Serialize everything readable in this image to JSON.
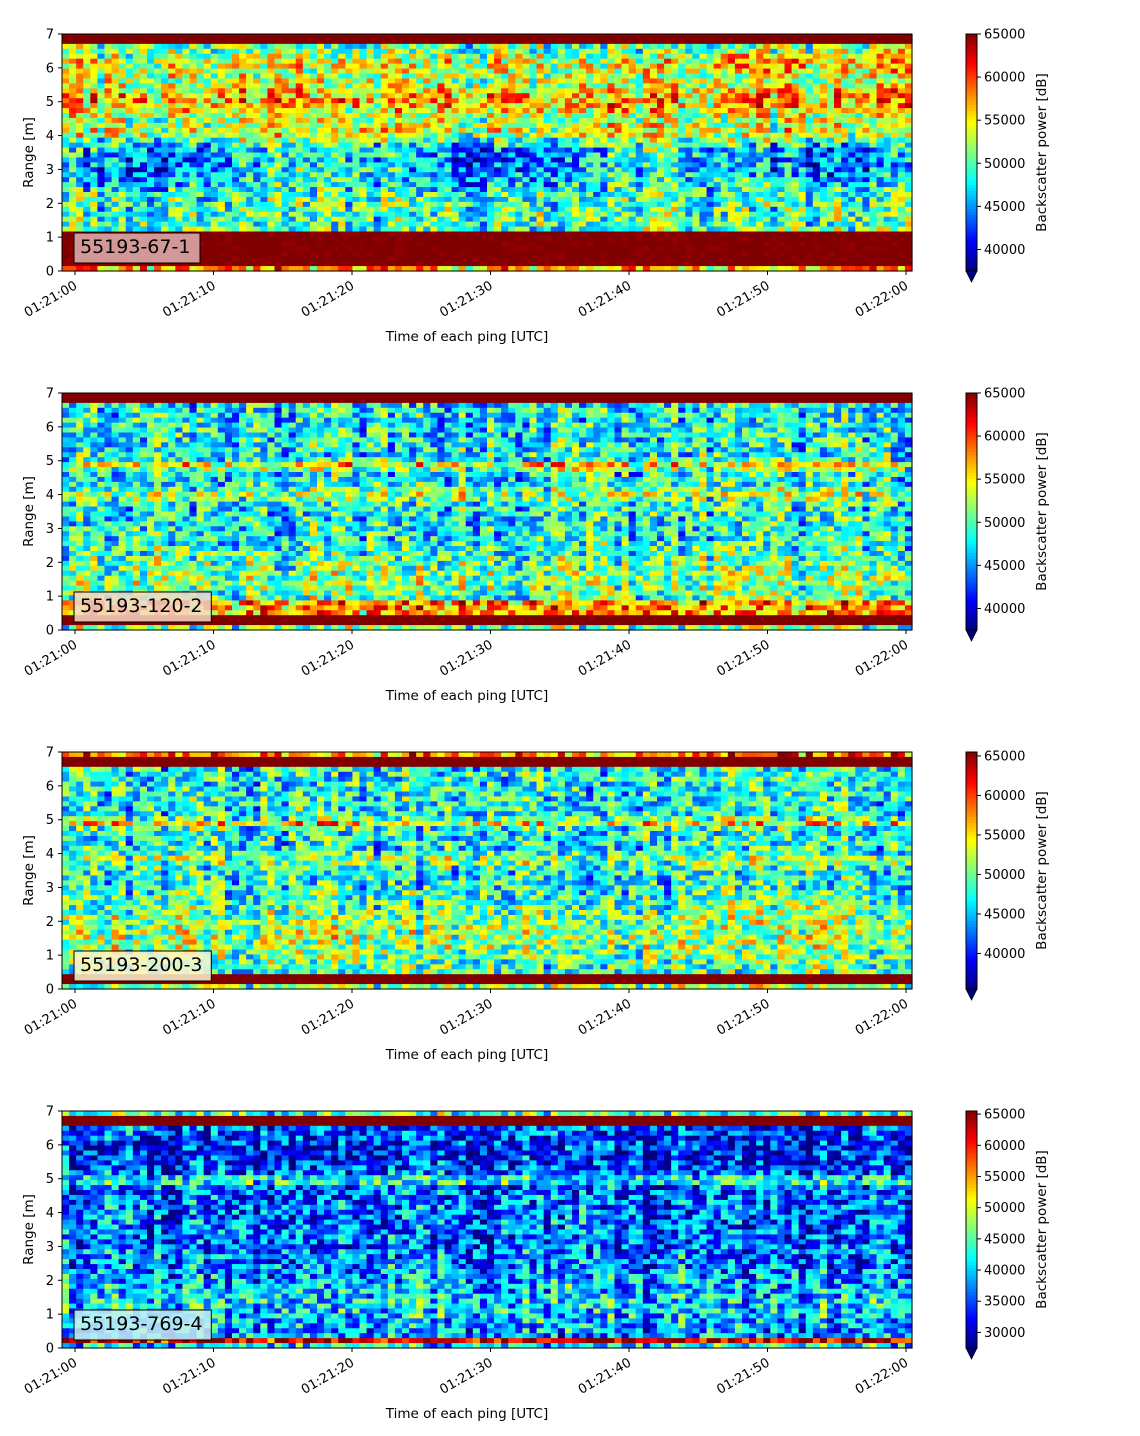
{
  "chart_data": [
    {
      "type": "heatmap",
      "label": "55193-67-1",
      "xlabel": "Time of each ping [UTC]",
      "ylabel": "Range [m]",
      "x_ticks": [
        "01:21:00",
        "01:21:10",
        "01:21:20",
        "01:21:30",
        "01:21:40",
        "01:21:50",
        "01:22:00"
      ],
      "y_ticks": [
        "0",
        "1",
        "2",
        "3",
        "4",
        "5",
        "6",
        "7"
      ],
      "ylim": [
        0,
        7
      ],
      "colorbar": {
        "label": "Backscatter power [dB]",
        "ticks": [
          "40000",
          "45000",
          "50000",
          "55000",
          "60000",
          "65000"
        ],
        "vmin": 37500,
        "vmax": 65000,
        "colormap": "jet",
        "extend": "min"
      },
      "label_box_color": "#e0b3b3"
    },
    {
      "type": "heatmap",
      "label": "55193-120-2",
      "xlabel": "Time of each ping [UTC]",
      "ylabel": "Range [m]",
      "x_ticks": [
        "01:21:00",
        "01:21:10",
        "01:21:20",
        "01:21:30",
        "01:21:40",
        "01:21:50",
        "01:22:00"
      ],
      "y_ticks": [
        "0",
        "1",
        "2",
        "3",
        "4",
        "5",
        "6",
        "7"
      ],
      "ylim": [
        0,
        7
      ],
      "colorbar": {
        "label": "Backscatter power [dB]",
        "ticks": [
          "40000",
          "45000",
          "50000",
          "55000",
          "60000",
          "65000"
        ],
        "vmin": 37500,
        "vmax": 65000,
        "colormap": "jet",
        "extend": "min"
      },
      "label_box_color": "#f6d9c8"
    },
    {
      "type": "heatmap",
      "label": "55193-200-3",
      "xlabel": "Time of each ping [UTC]",
      "ylabel": "Range [m]",
      "x_ticks": [
        "01:21:00",
        "01:21:10",
        "01:21:20",
        "01:21:30",
        "01:21:40",
        "01:21:50",
        "01:22:00"
      ],
      "y_ticks": [
        "0",
        "1",
        "2",
        "3",
        "4",
        "5",
        "6",
        "7"
      ],
      "ylim": [
        0,
        7
      ],
      "colorbar": {
        "label": "Backscatter power [dB]",
        "ticks": [
          "40000",
          "45000",
          "50000",
          "55000",
          "60000",
          "65000"
        ],
        "vmin": 35500,
        "vmax": 65500,
        "colormap": "jet",
        "extend": "min"
      },
      "label_box_color": "#fdf3d0"
    },
    {
      "type": "heatmap",
      "label": "55193-769-4",
      "xlabel": "Time of each ping [UTC]",
      "ylabel": "Range [m]",
      "x_ticks": [
        "01:21:00",
        "01:21:10",
        "01:21:20",
        "01:21:30",
        "01:21:40",
        "01:21:50",
        "01:22:00"
      ],
      "y_ticks": [
        "0",
        "1",
        "2",
        "3",
        "4",
        "5",
        "6",
        "7"
      ],
      "ylim": [
        0,
        7
      ],
      "colorbar": {
        "label": "Backscatter power [dB]",
        "ticks": [
          "30000",
          "35000",
          "40000",
          "45000",
          "50000",
          "55000",
          "60000",
          "65000"
        ],
        "vmin": 27500,
        "vmax": 65500,
        "colormap": "jet",
        "extend": "min"
      },
      "label_box_color": "#c8f0f4"
    }
  ]
}
